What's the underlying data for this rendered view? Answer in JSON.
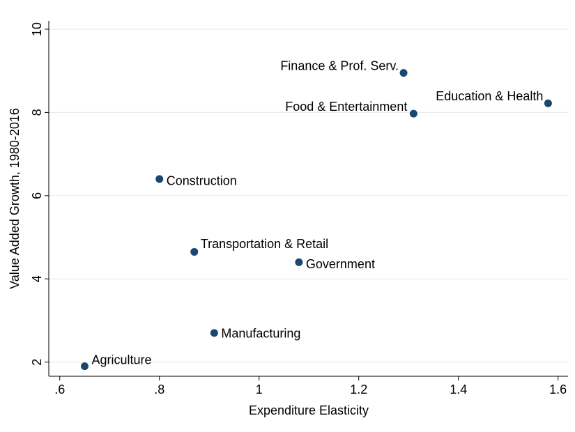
{
  "chart_data": {
    "type": "scatter",
    "x_label": "Expenditure Elasticity",
    "y_label": "Value Added Growth, 1980-2016",
    "labels": [
      "Agriculture",
      "Manufacturing",
      "Transportation & Retail",
      "Government",
      "Construction",
      "Food & Entertainment",
      "Finance & Prof. Serv.",
      "Education & Health"
    ],
    "x": [
      0.65,
      0.91,
      0.87,
      1.08,
      0.8,
      1.31,
      1.29,
      1.58
    ],
    "values": [
      1.9,
      2.7,
      4.65,
      4.4,
      6.4,
      7.97,
      8.95,
      8.22
    ],
    "color": "#1a476f",
    "xlim": [
      0.578,
      1.62
    ],
    "ylim": [
      1.66,
      10.2
    ],
    "xticks": [
      {
        "value": 0.6,
        "label": ".6"
      },
      {
        "value": 0.8,
        "label": ".8"
      },
      1,
      1.2,
      1.4,
      1.6
    ],
    "yticks": [
      2,
      4,
      6,
      8,
      10
    ],
    "grid": true
  }
}
